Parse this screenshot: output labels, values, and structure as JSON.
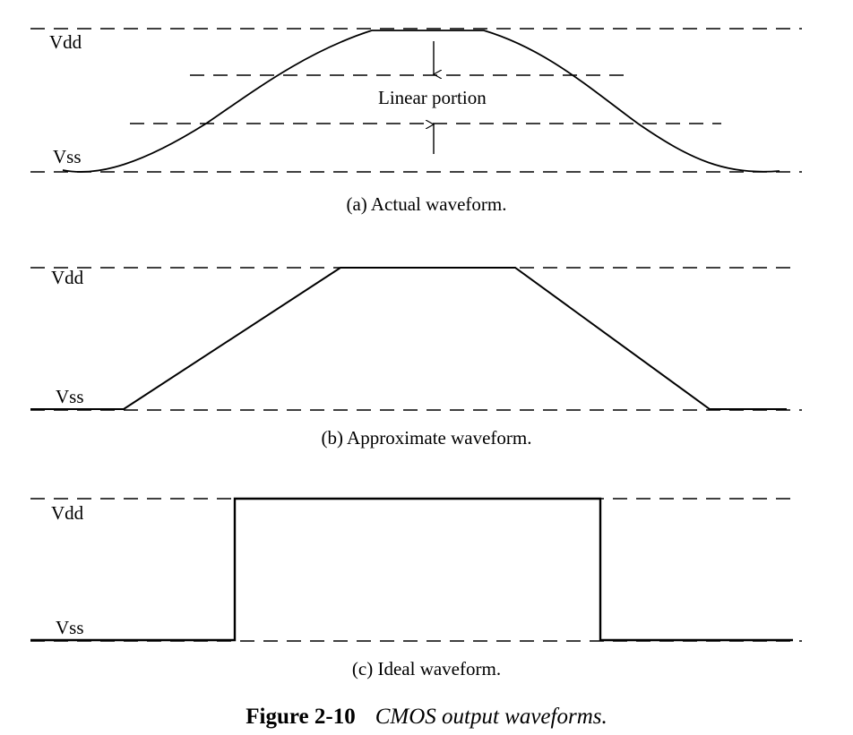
{
  "panel_a": {
    "vdd_label": "Vdd",
    "vss_label": "Vss",
    "annotation": "Linear portion",
    "caption": "(a) Actual waveform."
  },
  "panel_b": {
    "vdd_label": "Vdd",
    "vss_label": "Vss",
    "caption": "(b) Approximate waveform."
  },
  "panel_c": {
    "vdd_label": "Vdd",
    "vss_label": "Vss",
    "caption": "(c) Ideal waveform."
  },
  "figure_caption": {
    "number": "Figure 2-10",
    "description": "CMOS output waveforms."
  }
}
